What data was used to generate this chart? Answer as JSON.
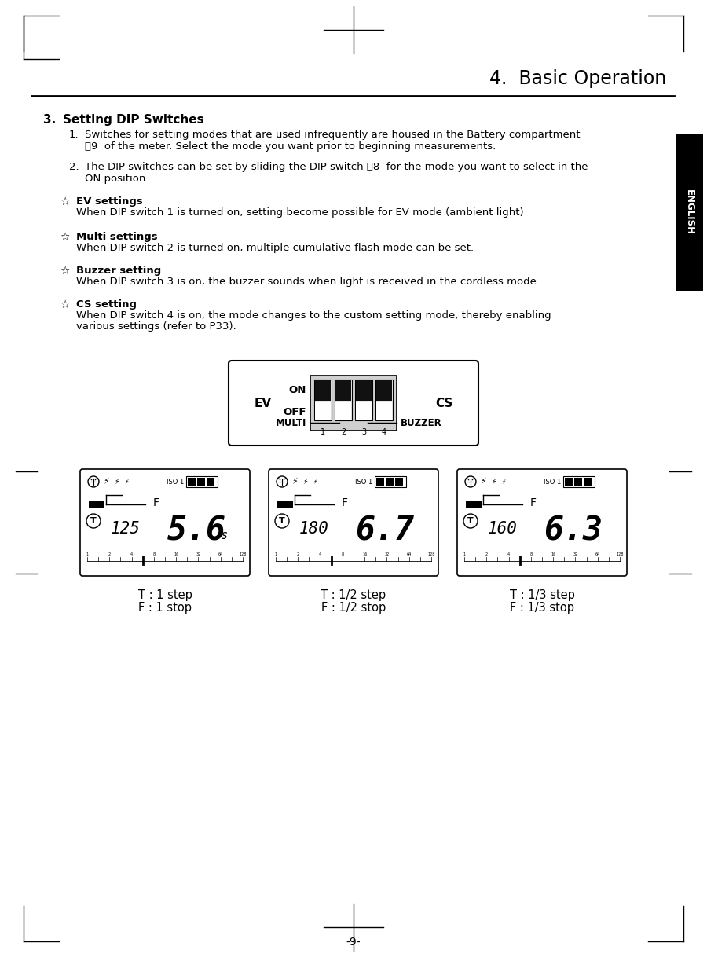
{
  "title": "4.  Basic Operation",
  "section_title": "3.   Setting DIP Switches",
  "background_color": "#ffffff",
  "text_color": "#000000",
  "item1_line1": "Switches for setting modes that are used infrequently are housed in the Battery compartment",
  "item1_line2": "\u00199  of the meter. Select the mode you want prior to beginning measurements.",
  "item2_line1": "The DIP switches can be set by sliding the DIP switch \u00188  for the mode you want to select in the",
  "item2_line2": "ON position.",
  "star_items": [
    {
      "title": "EV settings",
      "body1": "When DIP switch 1 is turned on, setting become possible for EV mode (ambient light)",
      "body2": ""
    },
    {
      "title": "Multi settings",
      "body1": "When DIP switch 2 is turned on, multiple cumulative flash mode can be set.",
      "body2": ""
    },
    {
      "title": "Buzzer setting",
      "body1": "When DIP switch 3 is on, the buzzer sounds when light is received in the cordless mode.",
      "body2": ""
    },
    {
      "title": "CS setting",
      "body1": "When DIP switch 4 is on, the mode changes to the custom setting mode, thereby enabling",
      "body2": "various settings (refer to P33)."
    }
  ],
  "displays": [
    {
      "t_val": "125",
      "f_val": "5.6",
      "s_suffix": "s",
      "label1": "T : 1 step",
      "label2": "F : 1 stop"
    },
    {
      "t_val": "180",
      "f_val": "6.7",
      "s_suffix": "",
      "label1": "T : 1/2 step",
      "label2": "F : 1/2 stop"
    },
    {
      "t_val": "160",
      "f_val": "6.3",
      "s_suffix": "",
      "label1": "T : 1/3 step",
      "label2": "F : 1/3 stop"
    }
  ],
  "english_tab_color": "#000000",
  "english_tab_text": "ENGLISH",
  "page_number": "-9-"
}
